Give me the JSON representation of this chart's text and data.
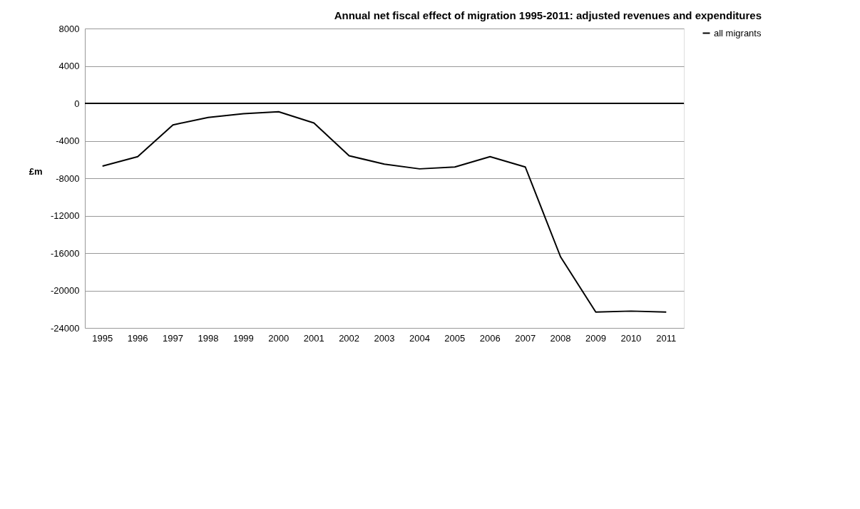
{
  "chart_data": {
    "type": "line",
    "title": "Annual net fiscal effect of migration 1995-2011: adjusted revenues and expenditures",
    "ylabel": "£m",
    "categories": [
      "1995",
      "1996",
      "1997",
      "1998",
      "1999",
      "2000",
      "2001",
      "2002",
      "2003",
      "2004",
      "2005",
      "2006",
      "2007",
      "2008",
      "2009",
      "2010",
      "2011"
    ],
    "series": [
      {
        "name": "all migrants",
        "color": "#000000",
        "values": [
          -6700,
          -5700,
          -2300,
          -1500,
          -1100,
          -900,
          -2100,
          -5600,
          -6500,
          -7000,
          -6800,
          -5700,
          -6800,
          -16400,
          -22300,
          -22200,
          -22300
        ]
      }
    ],
    "ylim": [
      -24000,
      8000
    ],
    "yticks": [
      -24000,
      -20000,
      -16000,
      -12000,
      -8000,
      -4000,
      0,
      4000,
      8000
    ],
    "ref_lines": [
      {
        "axis": "y",
        "value": 0,
        "color": "#000000"
      }
    ],
    "grid": "y",
    "legend": "right",
    "marker": "none",
    "line_style": "solid"
  }
}
